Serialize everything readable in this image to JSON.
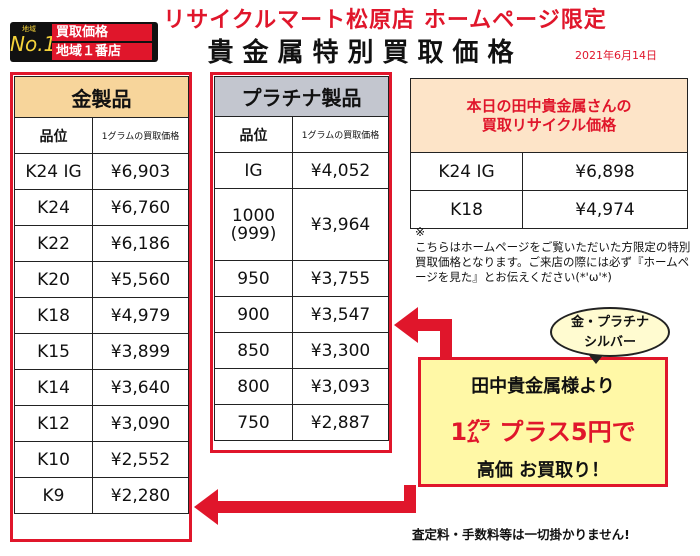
{
  "header": {
    "shop_title": "リサイクルマート松原店 ホームページ限定",
    "main_title": "貴金属特別買取価格",
    "date": "2021年6月14日"
  },
  "badge": {
    "small": "地域",
    "big": "No.1",
    "line1": "買取価格",
    "line2": "地域１番店"
  },
  "gold": {
    "title": "金製品",
    "col_grade": "品位",
    "col_price": "1グラムの買取価格",
    "rows": [
      {
        "grade": "K24 IG",
        "price": "¥6,903"
      },
      {
        "grade": "K24",
        "price": "¥6,760"
      },
      {
        "grade": "K22",
        "price": "¥6,186"
      },
      {
        "grade": "K20",
        "price": "¥5,560"
      },
      {
        "grade": "K18",
        "price": "¥4,979"
      },
      {
        "grade": "K15",
        "price": "¥3,899"
      },
      {
        "grade": "K14",
        "price": "¥3,640"
      },
      {
        "grade": "K12",
        "price": "¥3,090"
      },
      {
        "grade": "K10",
        "price": "¥2,552"
      },
      {
        "grade": "K9",
        "price": "¥2,280"
      }
    ]
  },
  "platinum": {
    "title": "プラチナ製品",
    "col_grade": "品位",
    "col_price": "1グラムの買取価格",
    "rows": [
      {
        "grade": "IG",
        "price": "¥4,052"
      },
      {
        "grade": "1000",
        "grade2": "(999)",
        "price": "¥3,964"
      },
      {
        "grade": "950",
        "price": "¥3,755"
      },
      {
        "grade": "900",
        "price": "¥3,547"
      },
      {
        "grade": "850",
        "price": "¥3,300"
      },
      {
        "grade": "800",
        "price": "¥3,093"
      },
      {
        "grade": "750",
        "price": "¥2,887"
      }
    ]
  },
  "tanaka": {
    "title_line1": "本日の田中貴金属さんの",
    "title_line2": "買取リサイクル価格",
    "rows": [
      {
        "grade": "K24 IG",
        "price": "¥6,898"
      },
      {
        "grade": "K18",
        "price": "¥4,974"
      }
    ]
  },
  "note": {
    "mark": "※",
    "text": "こちらはホームページをご覧いただいた方限定の特別買取価格となります。ご来店の際には必ず『ホームページを見た』とお伝えください(*'ω'*)"
  },
  "bubble": {
    "line1": "金・プラチナ",
    "line2": "シルバー"
  },
  "plus": {
    "line1": "田中貴金属様より",
    "line2": "1㌘ プラス5円で",
    "line3": "高価 お買取り！"
  },
  "footer": "査定料・手数料等は一切掛かりません!",
  "colors": {
    "accent_red": "#e0162b",
    "gold_header": "#f7d59b",
    "platinum_header": "#c3c6cf",
    "tanaka_header": "#fde4c8",
    "plus_box": "#fff8a6"
  }
}
